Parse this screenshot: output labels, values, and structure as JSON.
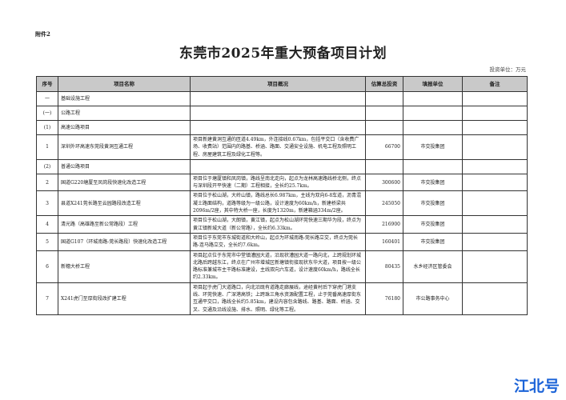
{
  "attachment_label": "附件2",
  "title": "东莞市2025年重大预备项目计划",
  "unit_note": "投资单位：万元",
  "headers": [
    "序号",
    "项目名称",
    "项目概况",
    "估算总投资",
    "填报单位",
    "备注"
  ],
  "rows": [
    {
      "no": "一",
      "name": "基础设施工程",
      "desc": "",
      "invest": "",
      "unit": "",
      "note": ""
    },
    {
      "no": "(一)",
      "name": "公路工程",
      "desc": "",
      "invest": "",
      "unit": "",
      "note": ""
    },
    {
      "no": "(1)",
      "name": "高速公路项目",
      "desc": "",
      "invest": "",
      "unit": "",
      "note": ""
    },
    {
      "no": "1",
      "name": "深圳外环高速东莞段黄洞互通工程",
      "desc": "项目新建黄洞互通的匝道4.49km，外连接线0.67km，包括平交口（含收费广场、收费站）范围内的路基、桥涵、路面、交通安全设施、机电工程及照明工程、房屋建筑工程及绿化工程等。",
      "invest": "66700",
      "unit": "市交投集团",
      "note": ""
    },
    {
      "no": "(2)",
      "name": "普通公路项目",
      "desc": "",
      "invest": "",
      "unit": "",
      "note": ""
    },
    {
      "no": "2",
      "name": "国道G220塘厦至凤岗段快速化改造工程",
      "desc": "项目位于塘厦镇和凤岗镇，路线呈南北走向，起点为龙林高速路线桥北侧，终点与深圳段开平快速（二期）工程相接，全长约25.7km。",
      "invest": "300600",
      "unit": "市交投集团",
      "note": ""
    },
    {
      "no": "3",
      "name": "县道X241莞长路至云园路段改造工程",
      "desc": "项目位于松山湖，大岭山镇，路线总长6.987km，主线为双向6-8车道，沥青混凝土路面结构，道路等级为一级公路，设计速度为60km/h，新建桥梁共2096m/2座，其中特大桥一座，长度为1320m，新建箱涵334m/2座。",
      "invest": "245050",
      "unit": "市交投集团",
      "note": ""
    },
    {
      "no": "4",
      "name": "清光路（高雄路至新公常路段）工程",
      "desc": "项目位于松山湖，大朗镇，黄江镇，起点为松山湖环莞快速三期华为段，终点为黄江镇新城大道（新公常路），全长约6.33km。",
      "invest": "216900",
      "unit": "市交投集团",
      "note": ""
    },
    {
      "no": "5",
      "name": "国道G107（环城南路-莞长路段）快速化改造工程",
      "desc": "项目位于东莞市东城街道和大岭山，起点为环城南路-莞长路立交，终点为莞长路-连马路立交，全长约7.6km。",
      "invest": "160401",
      "unit": "市交投集团",
      "note": ""
    },
    {
      "no": "6",
      "name": "新穗大桥工程",
      "desc": "项目起点位于东莞市中堂镇漕园大道，沿现状漕园大道一路向北，上跨规划环城北路后跨越东江，终点在广州市增城区新塘镇衔接现状东华大道，项目按一级公路标准兼城市主干路标准建设，主线双向六车道，设计速度60km/h，路线全长约2.33km。",
      "invest": "80435",
      "unit": "水乡经济区管委会",
      "note": ""
    },
    {
      "no": "7",
      "name": "X241虎门至厚街段改扩建工程",
      "desc": "项目起于虎门大道路口，向北沿既有道路走廊展线，途经黄村后下穿虎门港支线、环莞快速、广深港高铁；上跨珠三角水资源配置工程，止于莞番高速厚街东互通平交口，路线全长约5.85km，建设内容包含路线、路基、路面、桥涵、交叉、交通及沿线设施、排水、照明、绿化等工程。",
      "invest": "76180",
      "unit": "市公路事务中心",
      "note": ""
    }
  ],
  "watermark": "江北号",
  "colors": {
    "header_bg": "#c9c9c9",
    "watermark": "#1b63d8"
  }
}
